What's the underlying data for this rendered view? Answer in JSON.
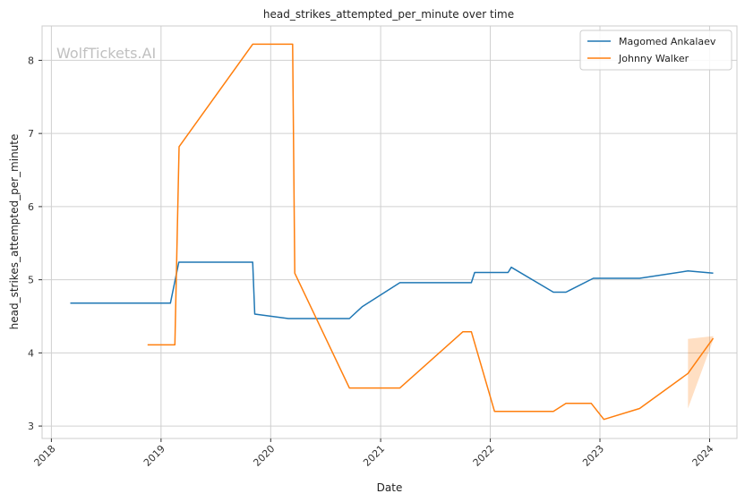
{
  "chart_data": {
    "type": "line",
    "title": "head_strikes_attempted_per_minute over time",
    "xlabel": "Date",
    "ylabel": "head_strikes_attempted_per_minute",
    "watermark": "WolfTickets.AI",
    "x_ticks": [
      "2018",
      "2019",
      "2020",
      "2021",
      "2022",
      "2023",
      "2024"
    ],
    "y_ticks": [
      "3",
      "4",
      "5",
      "6",
      "7",
      "8"
    ],
    "xlim": [
      "2017-12-01",
      "2024-04-01"
    ],
    "ylim": [
      2.83,
      8.47
    ],
    "grid": true,
    "legend_position": "top-right",
    "series": [
      {
        "name": "Magomed Ankalaev",
        "color": "#1f77b4",
        "points": [
          [
            "2018-03-05",
            4.68
          ],
          [
            "2019-02-01",
            4.68
          ],
          [
            "2019-03-01",
            5.24
          ],
          [
            "2019-11-02",
            5.24
          ],
          [
            "2019-11-09",
            4.53
          ],
          [
            "2020-02-29",
            4.47
          ],
          [
            "2020-09-19",
            4.47
          ],
          [
            "2020-10-31",
            4.63
          ],
          [
            "2021-03-06",
            4.96
          ],
          [
            "2021-10-30",
            4.96
          ],
          [
            "2021-11-10",
            5.1
          ],
          [
            "2022-03-01",
            5.1
          ],
          [
            "2022-03-12",
            5.17
          ],
          [
            "2022-07-30",
            4.83
          ],
          [
            "2022-09-10",
            4.83
          ],
          [
            "2022-12-10",
            5.02
          ],
          [
            "2023-05-13",
            5.02
          ],
          [
            "2023-10-21",
            5.12
          ],
          [
            "2024-01-13",
            5.09
          ]
        ]
      },
      {
        "name": "Johnny Walker",
        "color": "#ff7f0e",
        "points": [
          [
            "2018-11-17",
            4.11
          ],
          [
            "2019-02-16",
            4.11
          ],
          [
            "2019-03-02",
            6.82
          ],
          [
            "2019-11-02",
            8.22
          ],
          [
            "2020-03-14",
            8.22
          ],
          [
            "2020-03-21",
            5.09
          ],
          [
            "2020-09-19",
            3.52
          ],
          [
            "2021-03-06",
            3.52
          ],
          [
            "2021-10-02",
            4.29
          ],
          [
            "2021-10-30",
            4.29
          ],
          [
            "2022-01-15",
            3.2
          ],
          [
            "2022-07-30",
            3.2
          ],
          [
            "2022-09-10",
            3.31
          ],
          [
            "2022-12-03",
            3.31
          ],
          [
            "2023-01-14",
            3.09
          ],
          [
            "2023-05-13",
            3.24
          ],
          [
            "2023-10-21",
            3.72
          ],
          [
            "2024-01-13",
            4.2
          ]
        ],
        "band": [
          [
            "2023-10-21",
            3.24,
            4.19
          ],
          [
            "2024-01-13",
            4.18,
            4.23
          ]
        ]
      }
    ]
  }
}
